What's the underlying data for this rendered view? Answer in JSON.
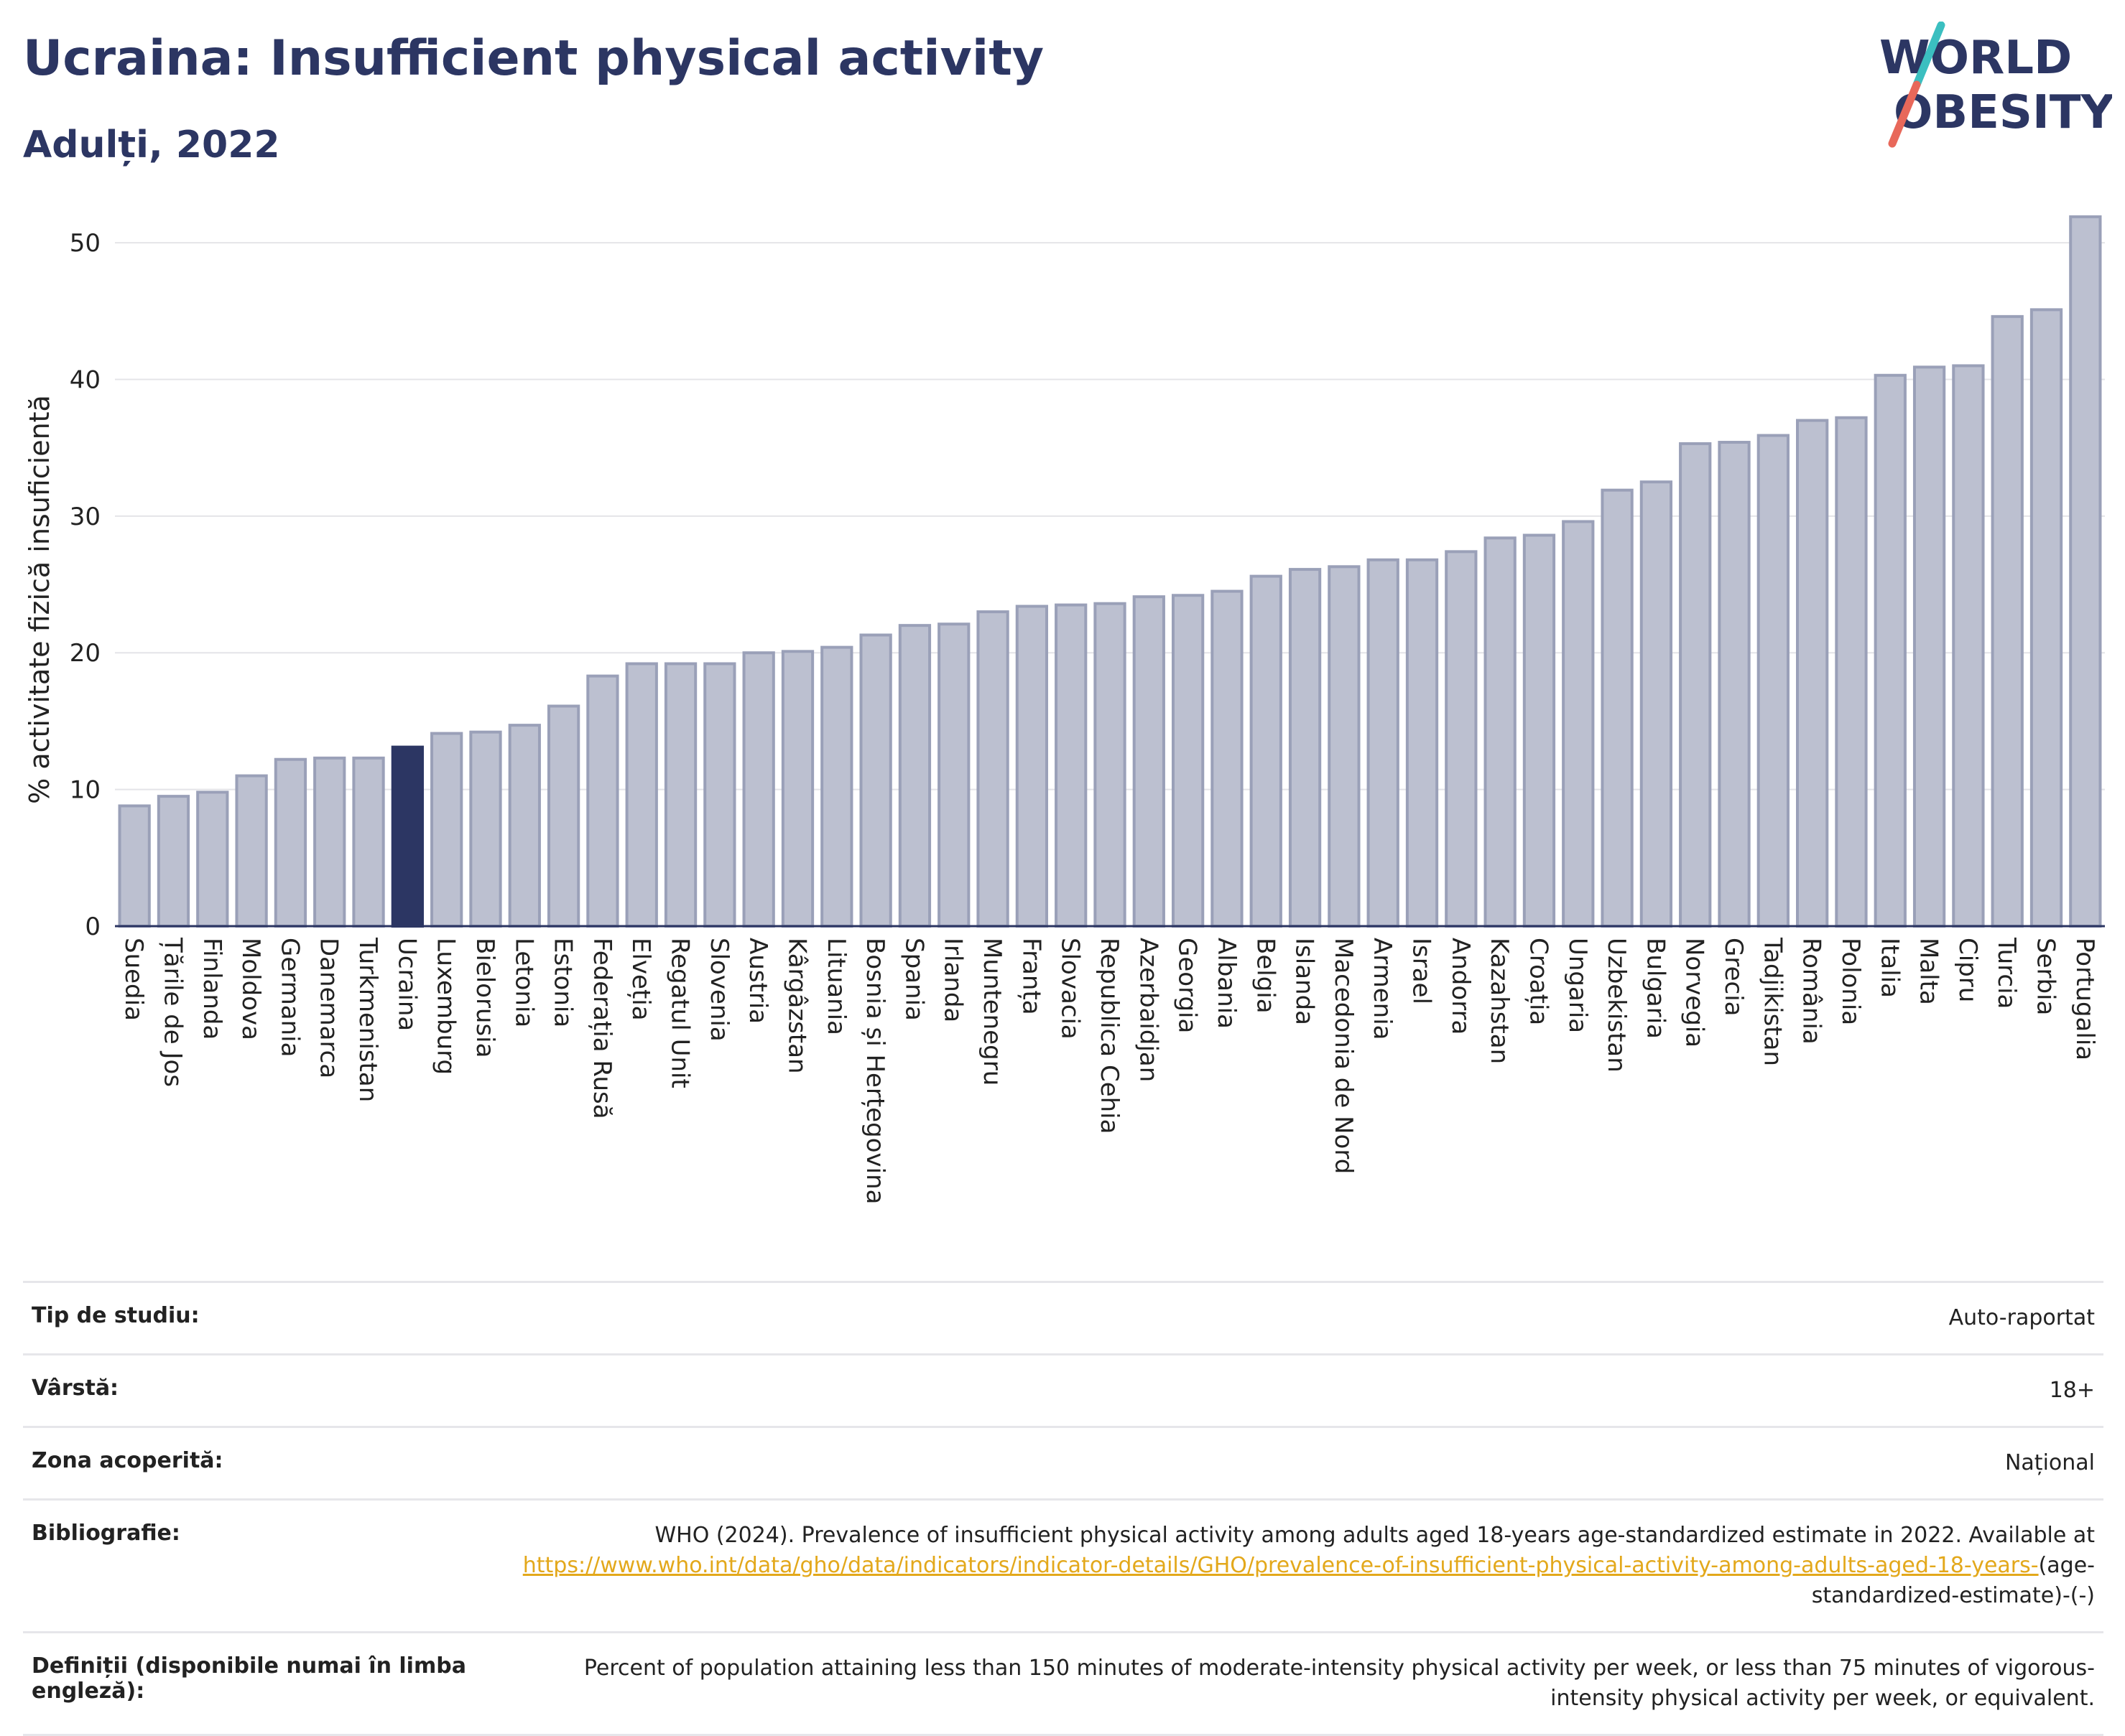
{
  "header": {
    "title": "Ucraina: Insufficient physical activity",
    "subtitle": "Adulți, 2022",
    "logo_line1": "WORLD",
    "logo_line2": "OBESITY"
  },
  "colors": {
    "bar": "#bcc0d0",
    "bar_stroke": "#9aa0b8",
    "highlight": "#2c3663",
    "grid": "#e4e4e8",
    "axis": "#2c3663",
    "link": "#e3a81b",
    "logo_teal": "#3bbfc0",
    "logo_coral": "#e8685a"
  },
  "chart_data": {
    "type": "bar",
    "title": "Ucraina: Insufficient physical activity",
    "subtitle": "Adulți, 2022",
    "xlabel": "",
    "ylabel": "% activitate fizică insuficientă",
    "ylim": [
      0,
      52
    ],
    "yticks": [
      0,
      10,
      20,
      30,
      40,
      50
    ],
    "grid": true,
    "highlight": "Ucraina",
    "categories": [
      "Suedia",
      "Țările de Jos",
      "Finlanda",
      "Moldova",
      "Germania",
      "Danemarca",
      "Turkmenistan",
      "Ucraina",
      "Luxemburg",
      "Bielorusia",
      "Letonia",
      "Estonia",
      "Federația Rusă",
      "Elveția",
      "Regatul Unit",
      "Slovenia",
      "Austria",
      "Kârgâzstan",
      "Lituania",
      "Bosnia și Herțegovina",
      "Spania",
      "Irlanda",
      "Muntenegru",
      "Franța",
      "Slovacia",
      "Republica Cehia",
      "Azerbaidjan",
      "Georgia",
      "Albania",
      "Belgia",
      "Islanda",
      "Macedonia de Nord",
      "Armenia",
      "Israel",
      "Andorra",
      "Kazahstan",
      "Croația",
      "Ungaria",
      "Uzbekistan",
      "Bulgaria",
      "Norvegia",
      "Grecia",
      "Tadjikistan",
      "România",
      "Polonia",
      "Italia",
      "Malta",
      "Cipru",
      "Turcia",
      "Serbia",
      "Portugalia"
    ],
    "values": [
      8.8,
      9.5,
      9.8,
      11.0,
      12.2,
      12.3,
      12.3,
      13.1,
      14.1,
      14.2,
      14.7,
      16.1,
      18.3,
      19.2,
      19.2,
      19.2,
      20.0,
      20.1,
      20.4,
      21.3,
      22.0,
      22.1,
      23.0,
      23.4,
      23.5,
      23.6,
      24.1,
      24.2,
      24.5,
      25.6,
      26.1,
      26.3,
      26.8,
      26.8,
      27.4,
      28.4,
      28.6,
      29.6,
      31.9,
      32.5,
      35.3,
      35.4,
      35.9,
      37.0,
      37.2,
      40.3,
      40.9,
      41.0,
      44.6,
      45.1,
      51.9
    ]
  },
  "info": {
    "rows": [
      {
        "label": "Tip de studiu:",
        "value": "Auto-raportat"
      },
      {
        "label": "Vârstă:",
        "value": "18+"
      },
      {
        "label": "Zona acoperită:",
        "value": "Național"
      }
    ],
    "bibliography_label": "Bibliografie:",
    "bibliography_text": "WHO (2024). Prevalence of insufficient physical activity among adults aged 18-years age-standardized estimate in 2022. Available at",
    "bibliography_link": "https://www.who.int/data/gho/data/indicators/indicator-details/GHO/prevalence-of-insufficient-physical-activity-among-adults-aged-18-years-",
    "bibliography_suffix": "(age-standardized-estimate)-(-)",
    "definitions_label": "Definiții (disponibile numai în limba engleză):",
    "definitions_text": "Percent of population attaining less than 150 minutes of moderate-intensity physical activity per week, or less than 75 minutes of vigorous-intensity physical activity per week, or equivalent."
  }
}
